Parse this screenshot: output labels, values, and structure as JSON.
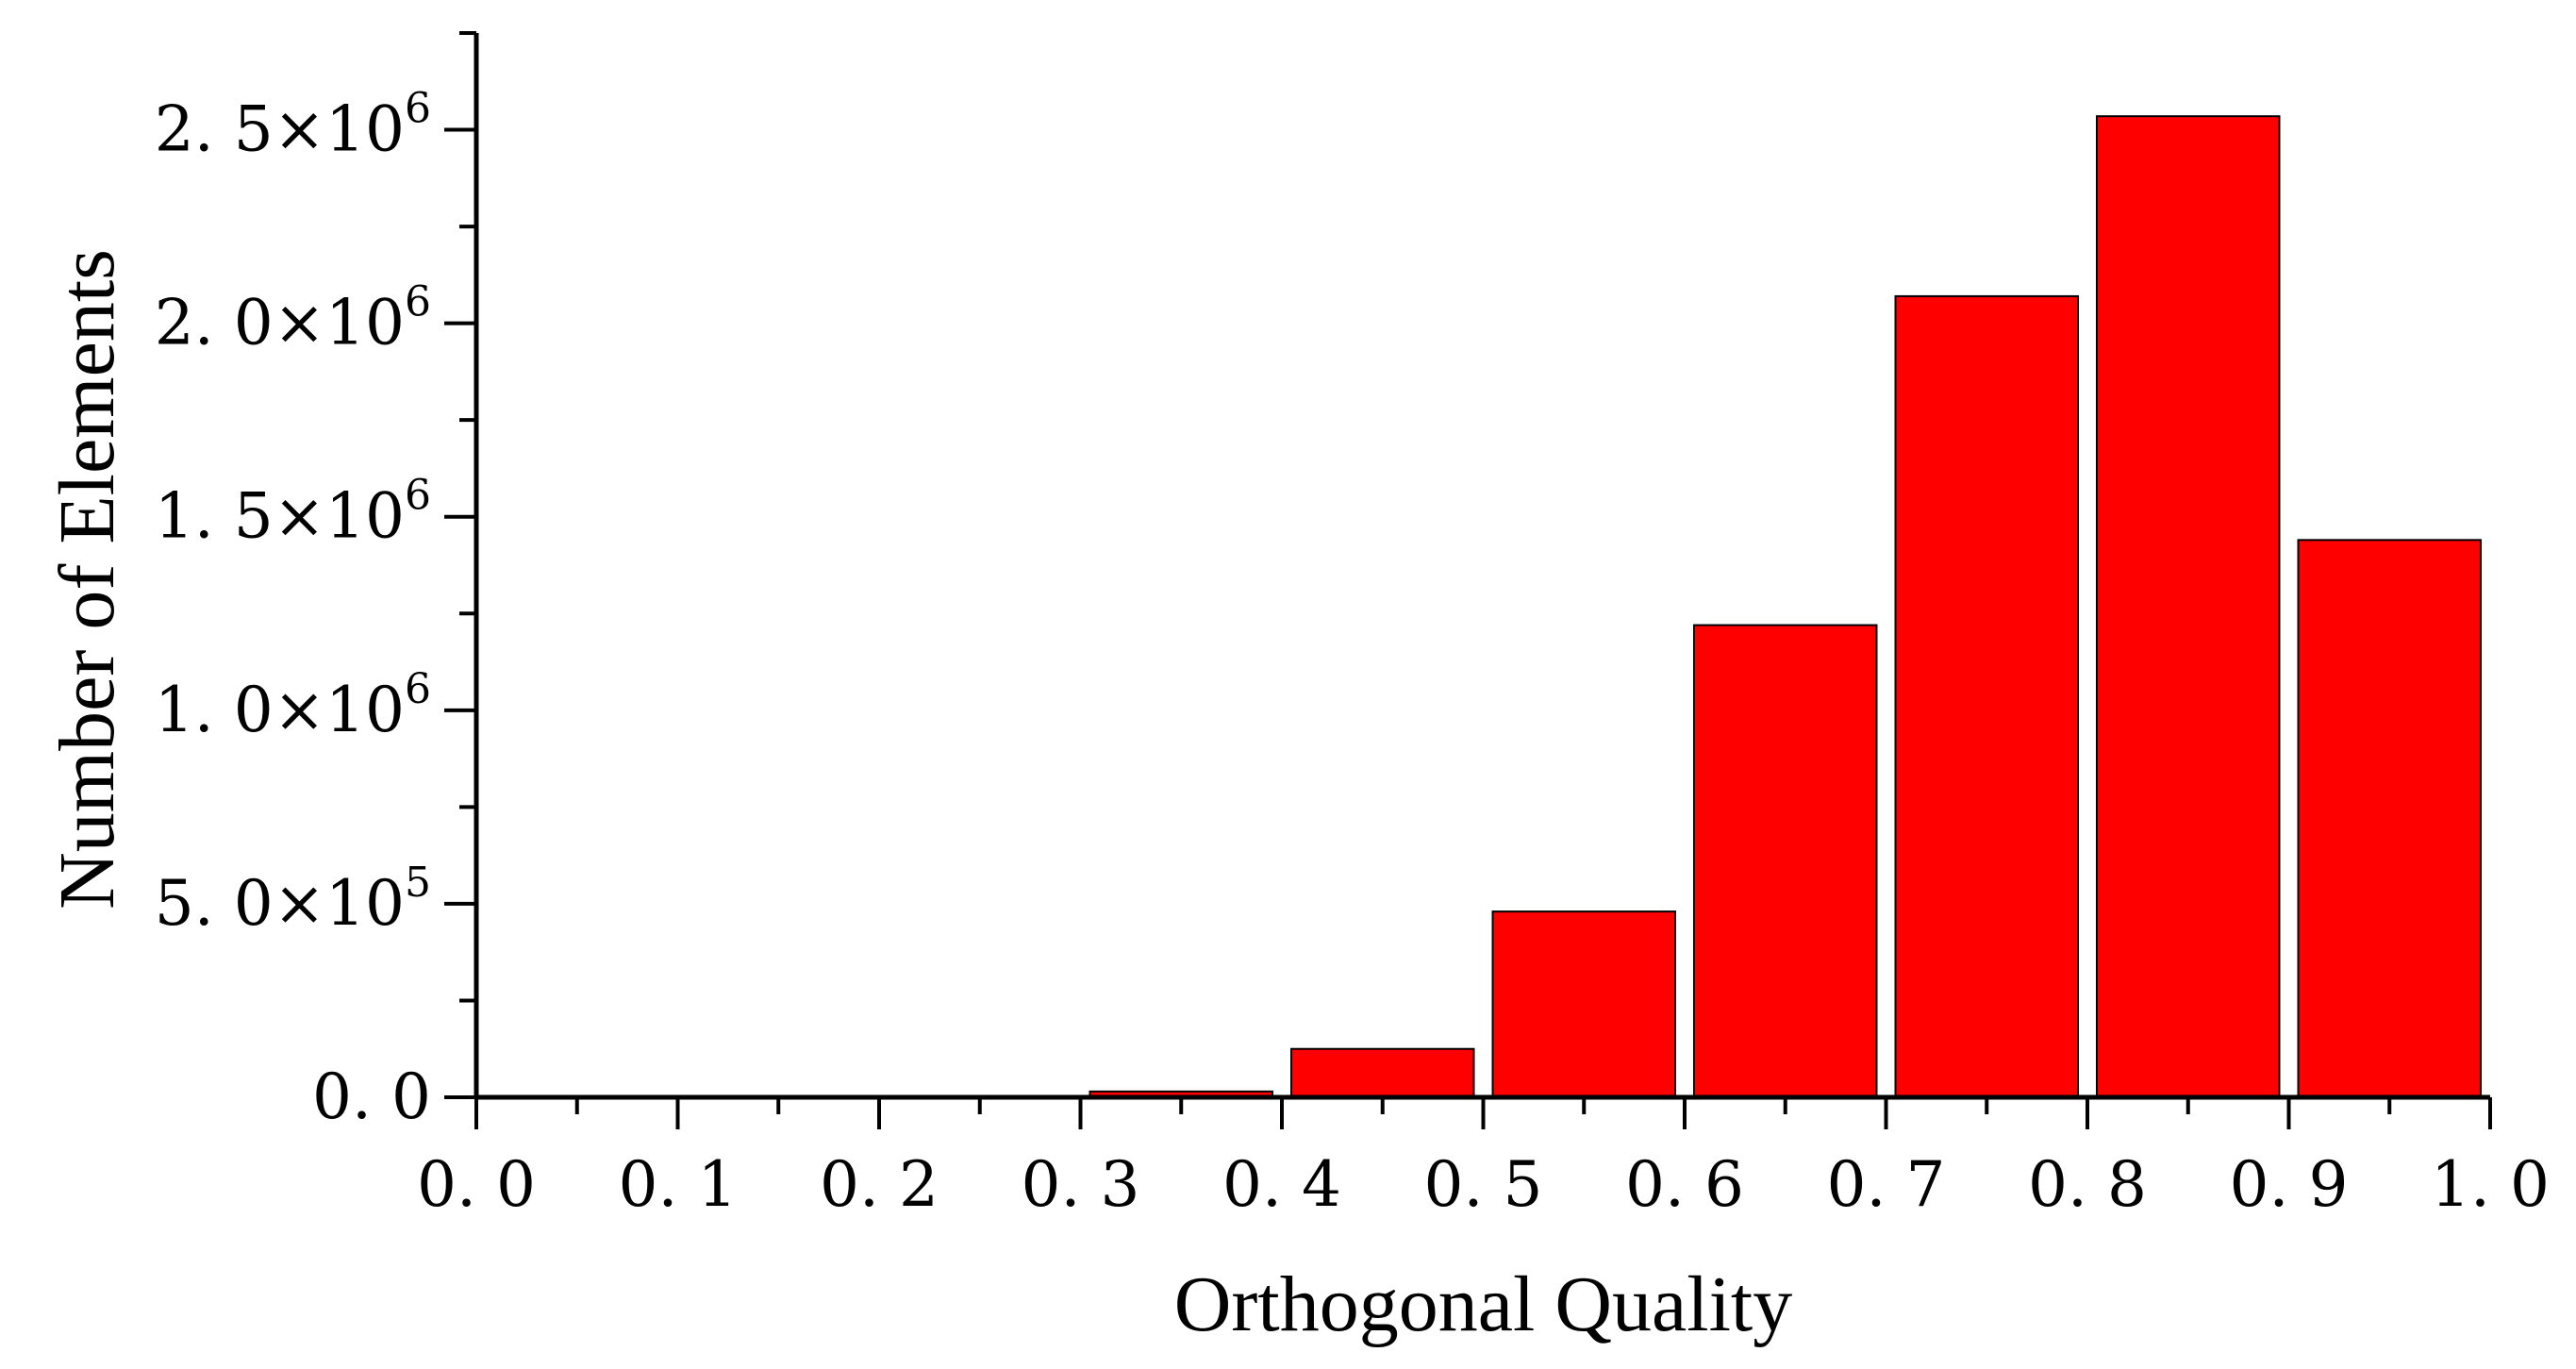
{
  "chart_data": {
    "type": "bar",
    "title": "",
    "xlabel": "Orthogonal Quality",
    "ylabel": "Number of Elements",
    "xlim": [
      0.0,
      1.0
    ],
    "ylim": [
      0,
      2750000
    ],
    "bar_color": "#ff0000",
    "grid": false,
    "bins": [
      {
        "x_start": 0.0,
        "x_end": 0.1,
        "value": 0
      },
      {
        "x_start": 0.1,
        "x_end": 0.2,
        "value": 0
      },
      {
        "x_start": 0.2,
        "x_end": 0.3,
        "value": 3000
      },
      {
        "x_start": 0.3,
        "x_end": 0.4,
        "value": 15000
      },
      {
        "x_start": 0.4,
        "x_end": 0.5,
        "value": 125000
      },
      {
        "x_start": 0.5,
        "x_end": 0.6,
        "value": 480000
      },
      {
        "x_start": 0.6,
        "x_end": 0.7,
        "value": 1220000
      },
      {
        "x_start": 0.7,
        "x_end": 0.8,
        "value": 2070000
      },
      {
        "x_start": 0.8,
        "x_end": 0.9,
        "value": 2535000
      },
      {
        "x_start": 0.9,
        "x_end": 1.0,
        "value": 1440000
      }
    ],
    "x_ticks": [
      {
        "value": 0.0,
        "label": "0. 0"
      },
      {
        "value": 0.1,
        "label": "0. 1"
      },
      {
        "value": 0.2,
        "label": "0. 2"
      },
      {
        "value": 0.3,
        "label": "0. 3"
      },
      {
        "value": 0.4,
        "label": "0. 4"
      },
      {
        "value": 0.5,
        "label": "0. 5"
      },
      {
        "value": 0.6,
        "label": "0. 6"
      },
      {
        "value": 0.7,
        "label": "0. 7"
      },
      {
        "value": 0.8,
        "label": "0. 8"
      },
      {
        "value": 0.9,
        "label": "0. 9"
      },
      {
        "value": 1.0,
        "label": "1. 0"
      }
    ],
    "y_ticks": [
      {
        "value": 0,
        "mantissa": "0. 0",
        "exponent": ""
      },
      {
        "value": 500000,
        "mantissa": "5. 0×10",
        "exponent": "5"
      },
      {
        "value": 1000000,
        "mantissa": "1. 0×10",
        "exponent": "6"
      },
      {
        "value": 1500000,
        "mantissa": "1. 5×10",
        "exponent": "6"
      },
      {
        "value": 2000000,
        "mantissa": "2. 0×10",
        "exponent": "6"
      },
      {
        "value": 2500000,
        "mantissa": "2. 5×10",
        "exponent": "6"
      }
    ]
  }
}
